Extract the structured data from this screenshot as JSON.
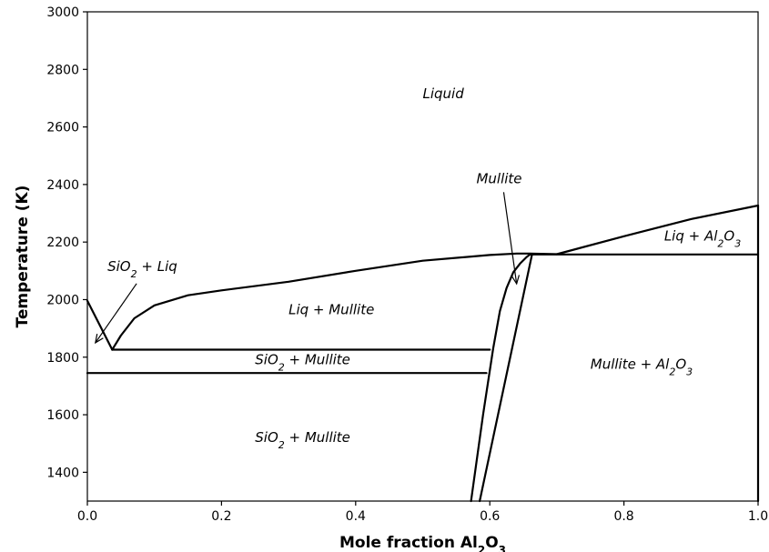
{
  "chart_data": {
    "type": "line",
    "title": "",
    "xlabel": "Mole fraction Al₂O₃",
    "xlabel_parts": [
      "Mole fraction Al",
      "2",
      "O",
      "3"
    ],
    "ylabel": "Temperature (K)",
    "xlim": [
      0.0,
      1.0
    ],
    "ylim": [
      1300,
      3000
    ],
    "xticks": [
      0.0,
      0.2,
      0.4,
      0.6,
      0.8,
      1.0
    ],
    "xtick_labels": [
      "0.0",
      "0.2",
      "0.4",
      "0.6",
      "0.8",
      "1.0"
    ],
    "yticks": [
      1400,
      1600,
      1800,
      2000,
      2200,
      2400,
      2600,
      2800,
      3000
    ],
    "ytick_labels": [
      "1400",
      "1600",
      "1800",
      "2000",
      "2200",
      "2400",
      "2600",
      "2800",
      "3000"
    ],
    "grid": false,
    "legend": "none",
    "series": [
      {
        "x": [
          0.0,
          0.037
        ],
        "y": [
          1996,
          1826
        ]
      },
      {
        "x": [
          0.037,
          0.05,
          0.07,
          0.1,
          0.15,
          0.2,
          0.3,
          0.4,
          0.5,
          0.6,
          0.64,
          0.66,
          0.7
        ],
        "y": [
          1826,
          1875,
          1935,
          1980,
          2015,
          2032,
          2062,
          2100,
          2135,
          2155,
          2160,
          2160,
          2158
        ]
      },
      {
        "x": [
          0.7,
          0.8,
          0.9,
          1.0
        ],
        "y": [
          2158,
          2220,
          2280,
          2327
        ]
      },
      {
        "x": [
          0.037,
          0.6
        ],
        "y": [
          1826,
          1826
        ]
      },
      {
        "x": [
          0.0,
          0.595
        ],
        "y": [
          1745,
          1745
        ]
      },
      {
        "x": [
          0.66,
          1.0
        ],
        "y": [
          2157,
          2157
        ]
      },
      {
        "x": [
          0.572,
          0.59,
          0.605,
          0.615,
          0.625,
          0.635,
          0.645,
          0.655,
          0.66
        ],
        "y": [
          1300,
          1600,
          1830,
          1960,
          2040,
          2095,
          2125,
          2148,
          2157
        ]
      },
      {
        "x": [
          0.585,
          0.663
        ],
        "y": [
          1300,
          2157
        ]
      },
      {
        "x": [
          1.0,
          1.0
        ],
        "y": [
          1300,
          2327
        ]
      }
    ],
    "annotations": [
      {
        "parts": [
          {
            "t": "Liquid"
          }
        ],
        "x": 0.5,
        "y": 2700
      },
      {
        "parts": [
          {
            "t": "Mullite"
          }
        ],
        "x": 0.58,
        "y": 2405,
        "arrow_to": [
          0.64,
          2055
        ]
      },
      {
        "parts": [
          {
            "t": "SiO"
          },
          {
            "t": "2",
            "sub": true
          },
          {
            "t": " + Liq"
          }
        ],
        "x": 0.03,
        "y": 2100,
        "arrow_to": [
          0.012,
          1850
        ]
      },
      {
        "parts": [
          {
            "t": "Liq + Mullite"
          }
        ],
        "x": 0.3,
        "y": 1950
      },
      {
        "parts": [
          {
            "t": "SiO"
          },
          {
            "t": "2",
            "sub": true
          },
          {
            "t": " + Mullite"
          }
        ],
        "x": 0.25,
        "y": 1775
      },
      {
        "parts": [
          {
            "t": "SiO"
          },
          {
            "t": "2",
            "sub": true
          },
          {
            "t": " + Mullite"
          }
        ],
        "x": 0.25,
        "y": 1505
      },
      {
        "parts": [
          {
            "t": "Liq + Al"
          },
          {
            "t": "2",
            "sub": true
          },
          {
            "t": "O"
          },
          {
            "t": "3",
            "sub": true
          }
        ],
        "x": 0.86,
        "y": 2205
      },
      {
        "parts": [
          {
            "t": "Mullite + Al"
          },
          {
            "t": "2",
            "sub": true
          },
          {
            "t": "O"
          },
          {
            "t": "3",
            "sub": true
          }
        ],
        "x": 0.75,
        "y": 1760
      }
    ]
  }
}
